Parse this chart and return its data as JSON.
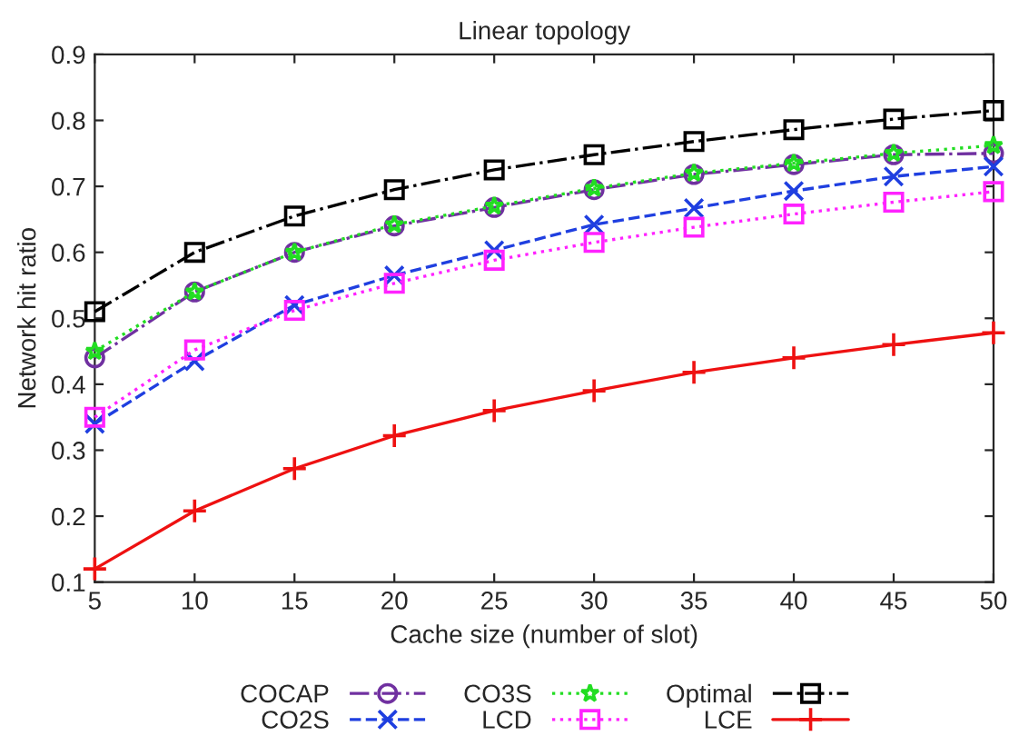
{
  "chart_data": {
    "type": "line",
    "title": "Linear topology",
    "xlabel": "Cache size (number of slot)",
    "ylabel": "Network hit ratio",
    "x": [
      5,
      10,
      15,
      20,
      25,
      30,
      35,
      40,
      45,
      50
    ],
    "xlim": [
      5,
      50
    ],
    "xticks": [
      5,
      10,
      15,
      20,
      25,
      30,
      35,
      40,
      45,
      50
    ],
    "ylim": [
      0.1,
      0.9
    ],
    "yticks": [
      0.1,
      0.2,
      0.3,
      0.4,
      0.5,
      0.6,
      0.7,
      0.8,
      0.9
    ],
    "grid": false,
    "legend": "bottom",
    "series": [
      {
        "name": "COCAP",
        "color": "#7030a0",
        "marker": "circle",
        "line_style": "dashdot",
        "values": [
          0.44,
          0.54,
          0.6,
          0.64,
          0.668,
          0.695,
          0.718,
          0.733,
          0.748,
          0.75
        ]
      },
      {
        "name": "CO2S",
        "color": "#1f3fe0",
        "marker": "cross",
        "line_style": "dashed",
        "values": [
          0.34,
          0.435,
          0.52,
          0.565,
          0.603,
          0.642,
          0.667,
          0.693,
          0.715,
          0.73
        ]
      },
      {
        "name": "CO3S",
        "color": "#22dd22",
        "marker": "star",
        "line_style": "dotted",
        "values": [
          0.45,
          0.54,
          0.6,
          0.642,
          0.67,
          0.697,
          0.72,
          0.735,
          0.75,
          0.762
        ]
      },
      {
        "name": "LCD",
        "color": "#ff22ff",
        "marker": "square",
        "line_style": "dotted",
        "values": [
          0.35,
          0.452,
          0.512,
          0.553,
          0.588,
          0.615,
          0.638,
          0.658,
          0.676,
          0.692
        ]
      },
      {
        "name": "Optimal",
        "color": "#000000",
        "marker": "square",
        "line_style": "dashdot",
        "values": [
          0.51,
          0.6,
          0.655,
          0.695,
          0.725,
          0.748,
          0.768,
          0.786,
          0.802,
          0.815
        ]
      },
      {
        "name": "LCE",
        "color": "#ee1111",
        "marker": "plus",
        "line_style": "solid",
        "values": [
          0.12,
          0.208,
          0.272,
          0.322,
          0.36,
          0.39,
          0.418,
          0.44,
          0.46,
          0.478
        ]
      }
    ]
  }
}
